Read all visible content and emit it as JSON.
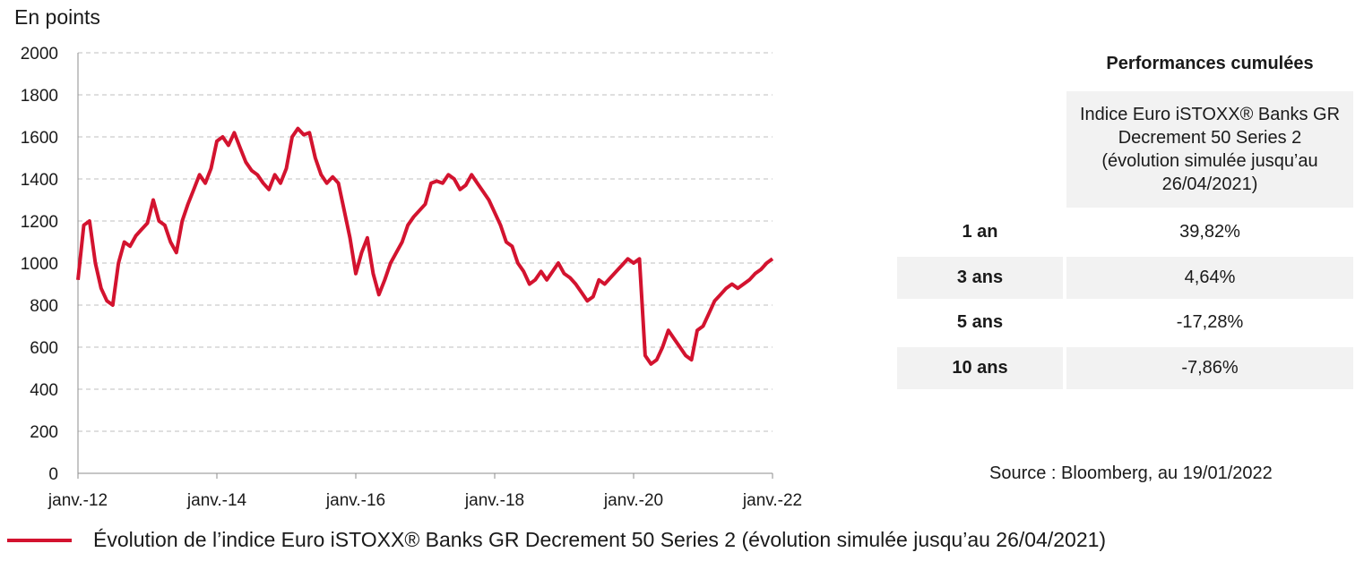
{
  "chart_data": {
    "type": "line",
    "unit_label": "En points",
    "ylim": [
      0,
      2000
    ],
    "yticks": [
      0,
      200,
      400,
      600,
      800,
      1000,
      1200,
      1400,
      1600,
      1800,
      2000
    ],
    "xlim": [
      "2012-01",
      "2022-01"
    ],
    "xticks": [
      "janv.-12",
      "janv.-14",
      "janv.-16",
      "janv.-18",
      "janv.-20",
      "janv.-22"
    ],
    "grid": "horizontal-dashed",
    "series": [
      {
        "name": "Évolution de l’indice Euro iSTOXX® Banks GR Decrement 50 Series 2 (évolution simulée jusqu’au 26/04/2021)",
        "color": "#d3132f",
        "x": [
          "2012-01",
          "2012-02",
          "2012-03",
          "2012-04",
          "2012-05",
          "2012-06",
          "2012-07",
          "2012-08",
          "2012-09",
          "2012-10",
          "2012-11",
          "2012-12",
          "2013-01",
          "2013-02",
          "2013-03",
          "2013-04",
          "2013-05",
          "2013-06",
          "2013-07",
          "2013-08",
          "2013-09",
          "2013-10",
          "2013-11",
          "2013-12",
          "2014-01",
          "2014-02",
          "2014-03",
          "2014-04",
          "2014-05",
          "2014-06",
          "2014-07",
          "2014-08",
          "2014-09",
          "2014-10",
          "2014-11",
          "2014-12",
          "2015-01",
          "2015-02",
          "2015-03",
          "2015-04",
          "2015-05",
          "2015-06",
          "2015-07",
          "2015-08",
          "2015-09",
          "2015-10",
          "2015-11",
          "2015-12",
          "2016-01",
          "2016-02",
          "2016-03",
          "2016-04",
          "2016-05",
          "2016-06",
          "2016-07",
          "2016-08",
          "2016-09",
          "2016-10",
          "2016-11",
          "2016-12",
          "2017-01",
          "2017-02",
          "2017-03",
          "2017-04",
          "2017-05",
          "2017-06",
          "2017-07",
          "2017-08",
          "2017-09",
          "2017-10",
          "2017-11",
          "2017-12",
          "2018-01",
          "2018-02",
          "2018-03",
          "2018-04",
          "2018-05",
          "2018-06",
          "2018-07",
          "2018-08",
          "2018-09",
          "2018-10",
          "2018-11",
          "2018-12",
          "2019-01",
          "2019-02",
          "2019-03",
          "2019-04",
          "2019-05",
          "2019-06",
          "2019-07",
          "2019-08",
          "2019-09",
          "2019-10",
          "2019-11",
          "2019-12",
          "2020-01",
          "2020-02",
          "2020-03",
          "2020-04",
          "2020-05",
          "2020-06",
          "2020-07",
          "2020-08",
          "2020-09",
          "2020-10",
          "2020-11",
          "2020-12",
          "2021-01",
          "2021-02",
          "2021-03",
          "2021-04",
          "2021-05",
          "2021-06",
          "2021-07",
          "2021-08",
          "2021-09",
          "2021-10",
          "2021-11",
          "2021-12",
          "2022-01"
        ],
        "values": [
          920,
          1180,
          1200,
          1000,
          880,
          820,
          800,
          1000,
          1100,
          1080,
          1130,
          1160,
          1190,
          1300,
          1200,
          1180,
          1100,
          1050,
          1200,
          1280,
          1350,
          1420,
          1380,
          1450,
          1580,
          1600,
          1560,
          1620,
          1550,
          1480,
          1440,
          1420,
          1380,
          1350,
          1420,
          1380,
          1450,
          1600,
          1640,
          1610,
          1620,
          1500,
          1420,
          1380,
          1410,
          1380,
          1250,
          1120,
          950,
          1050,
          1120,
          950,
          850,
          920,
          1000,
          1050,
          1100,
          1180,
          1220,
          1250,
          1280,
          1380,
          1390,
          1380,
          1420,
          1400,
          1350,
          1370,
          1420,
          1380,
          1340,
          1300,
          1240,
          1180,
          1100,
          1080,
          1000,
          960,
          900,
          920,
          960,
          920,
          960,
          1000,
          950,
          930,
          900,
          860,
          820,
          840,
          920,
          900,
          930,
          960,
          990,
          1020,
          1000,
          1020,
          560,
          520,
          540,
          600,
          680,
          640,
          600,
          560,
          540,
          680,
          700,
          760,
          820,
          850,
          880,
          900,
          880,
          900,
          920,
          950,
          970,
          1000,
          1020
        ]
      }
    ]
  },
  "performance": {
    "title": "Performances cumulées",
    "column_header": "Indice Euro iSTOXX® Banks GR Decrement 50 Series 2 (évolution simulée jusqu’au 26/04/2021)",
    "rows": [
      {
        "label": "1 an",
        "value": "39,82%"
      },
      {
        "label": "3 ans",
        "value": "4,64%"
      },
      {
        "label": "5 ans",
        "value": "-17,28%"
      },
      {
        "label": "10 ans",
        "value": "-7,86%"
      }
    ]
  },
  "source": "Source : Bloomberg, au 19/01/2022",
  "legend": {
    "label": "Évolution de l’indice Euro iSTOXX® Banks GR Decrement 50 Series 2 (évolution simulée jusqu’au 26/04/2021)",
    "color": "#d3132f"
  }
}
